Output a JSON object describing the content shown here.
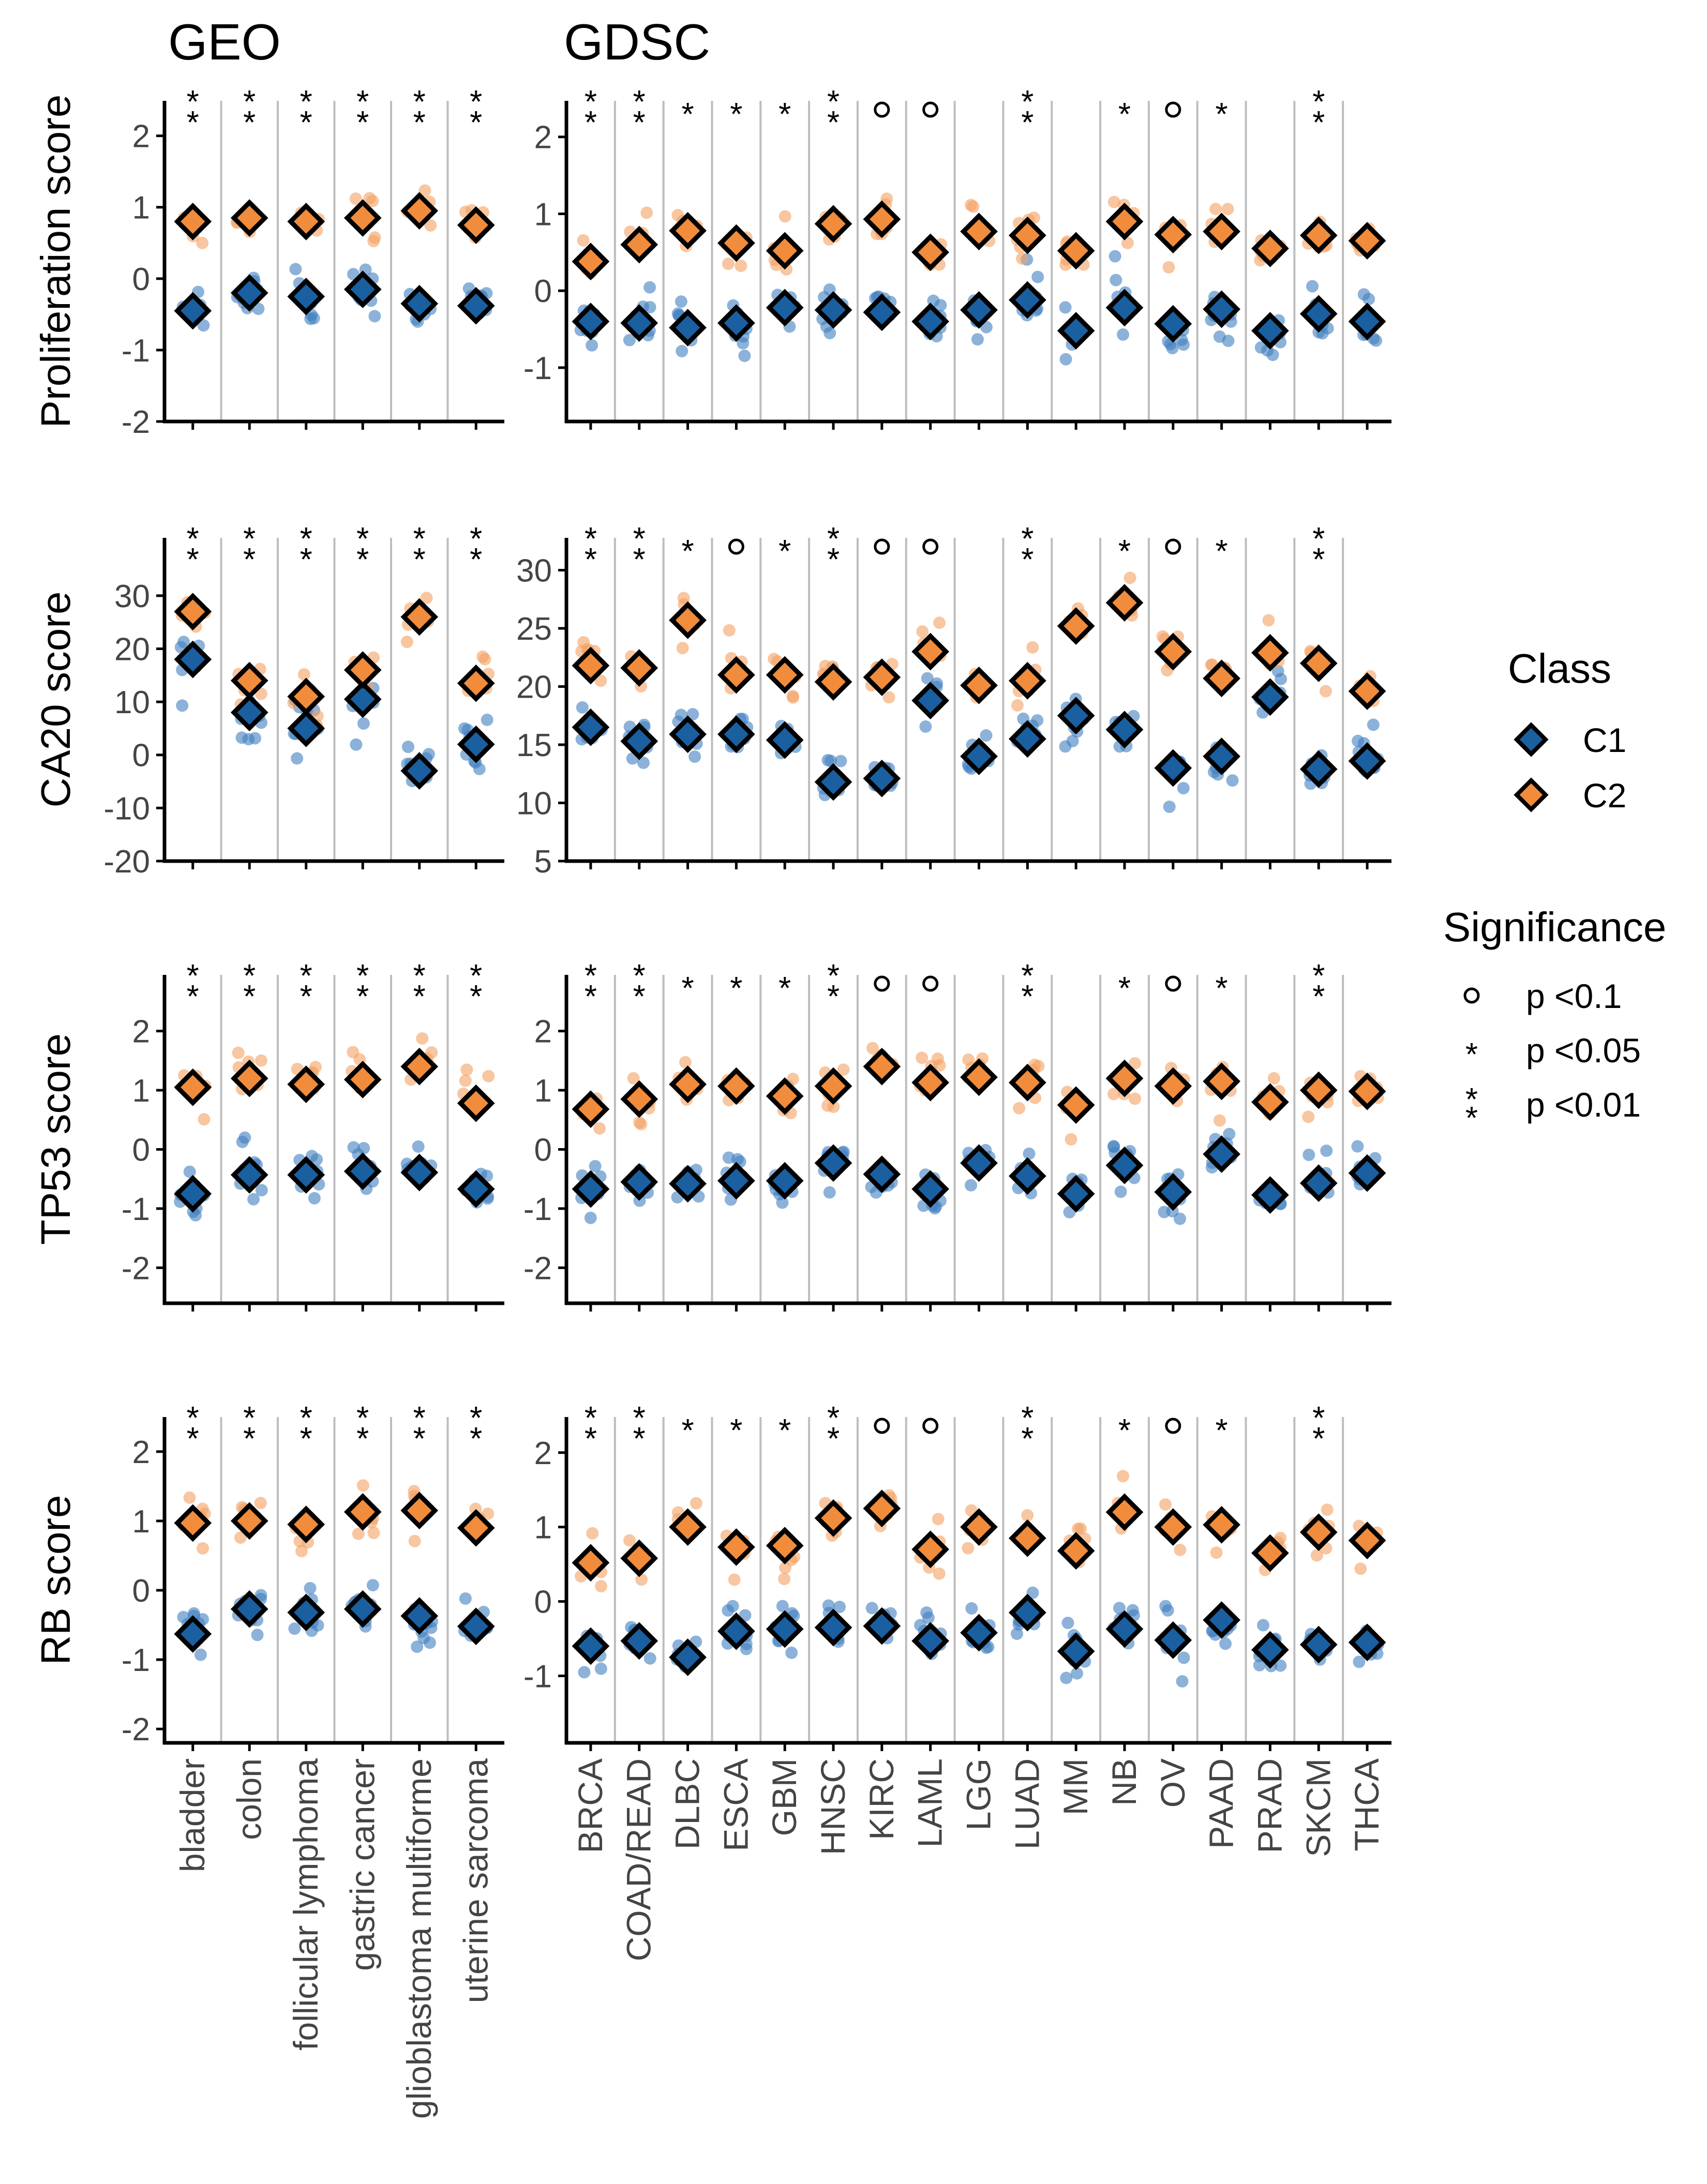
{
  "chart_data": {
    "type": "scatter",
    "group_titles": [
      "GEO",
      "GDSC"
    ],
    "row_labels": [
      "Proliferation score",
      "CA20 score",
      "TP53 score",
      "RB score"
    ],
    "geo_categories": [
      "bladder",
      "colon",
      "follicular lymphoma",
      "gastric cancer",
      "glioblastoma multiforme",
      "uterine sarcoma"
    ],
    "gdsc_categories": [
      "BRCA",
      "COAD/READ",
      "DLBC",
      "ESCA",
      "GBM",
      "HNSC",
      "KIRC",
      "LAML",
      "LGG",
      "LUAD",
      "MM",
      "NB",
      "OV",
      "PAAD",
      "PRAD",
      "SKCM",
      "THCA"
    ],
    "legend": {
      "class_title": "Class",
      "class_entries": [
        {
          "label": "C1",
          "color": "#1a5fa0"
        },
        {
          "label": "C2",
          "color": "#f08c3c"
        }
      ],
      "significance_title": "Significance",
      "significance_entries": [
        {
          "symbol": "o",
          "label": "p <0.1"
        },
        {
          "symbol": "*",
          "label": "p <0.05"
        },
        {
          "symbol": "**",
          "label": "p <0.01"
        }
      ]
    },
    "colors": {
      "c1": "#1a5fa0",
      "c2": "#f08c3c",
      "c1_points": "#3f7fc0",
      "c2_points": "#f4a060",
      "separator": "#bdbdbd"
    },
    "panels": [
      {
        "geo": {
          "ylim": [
            -2,
            2.2
          ],
          "ticks": [
            -2,
            -1,
            0,
            1,
            2
          ],
          "c1": [
            -0.45,
            -0.2,
            -0.25,
            -0.15,
            -0.35,
            -0.38
          ],
          "c2": [
            0.8,
            0.85,
            0.8,
            0.85,
            0.95,
            0.75
          ],
          "sig": [
            "**",
            "**",
            "**",
            "**",
            "**",
            "**"
          ]
        },
        "gdsc": {
          "ylim": [
            -1.7,
            2.2
          ],
          "ticks": [
            -1,
            0,
            1,
            2
          ],
          "c1": [
            -0.4,
            -0.42,
            -0.48,
            -0.42,
            -0.22,
            -0.25,
            -0.28,
            -0.4,
            -0.25,
            -0.12,
            -0.52,
            -0.22,
            -0.43,
            -0.24,
            -0.52,
            -0.3,
            -0.4
          ],
          "c2": [
            0.38,
            0.6,
            0.78,
            0.62,
            0.52,
            0.87,
            0.93,
            0.5,
            0.77,
            0.72,
            0.52,
            0.9,
            0.73,
            0.77,
            0.55,
            0.72,
            0.65
          ],
          "sig": [
            "**",
            "**",
            "*",
            "*",
            "*",
            "**",
            "o",
            "o",
            "",
            "**",
            "",
            "*",
            "o",
            "*",
            "",
            "**",
            ""
          ]
        }
      },
      {
        "geo": {
          "ylim": [
            -20,
            37
          ],
          "ticks": [
            -20,
            -10,
            0,
            10,
            20,
            30
          ],
          "c1": [
            18,
            8,
            5,
            10.5,
            -3,
            2
          ],
          "c2": [
            27,
            14,
            11,
            16,
            26,
            13.5
          ],
          "sig": [
            "**",
            "**",
            "**",
            "**",
            "**",
            "**"
          ]
        },
        "gdsc": {
          "ylim": [
            5,
            31
          ],
          "ticks": [
            5,
            10,
            15,
            20,
            25,
            30
          ],
          "c1": [
            16.5,
            15.3,
            15.9,
            15.9,
            15.4,
            11.8,
            12.1,
            18.8,
            14,
            15.5,
            17.5,
            16.3,
            13,
            14,
            19.1,
            12.9,
            13.6
          ],
          "c2": [
            21.8,
            21.6,
            25.7,
            21,
            21,
            20.4,
            20.8,
            23,
            20.1,
            20.5,
            25.2,
            27.2,
            23,
            20.7,
            22.9,
            22,
            19.6
          ],
          "sig": [
            "**",
            "**",
            "*",
            "o",
            "*",
            "**",
            "o",
            "o",
            "",
            "**",
            "",
            "*",
            "o",
            "*",
            "",
            "**",
            ""
          ]
        }
      },
      {
        "geo": {
          "ylim": [
            -2.6,
            2.6
          ],
          "ticks": [
            -2,
            -1,
            0,
            1,
            2
          ],
          "c1": [
            -0.75,
            -0.43,
            -0.43,
            -0.37,
            -0.39,
            -0.67
          ],
          "c2": [
            1.05,
            1.2,
            1.1,
            1.18,
            1.4,
            0.78
          ],
          "sig": [
            "**",
            "**",
            "**",
            "**",
            "**",
            "**"
          ]
        },
        "gdsc": {
          "ylim": [
            -2.6,
            2.6
          ],
          "ticks": [
            -2,
            -1,
            0,
            1,
            2
          ],
          "c1": [
            -0.67,
            -0.55,
            -0.58,
            -0.53,
            -0.53,
            -0.23,
            -0.42,
            -0.67,
            -0.23,
            -0.45,
            -0.75,
            -0.27,
            -0.72,
            -0.08,
            -0.77,
            -0.57,
            -0.4
          ],
          "c2": [
            0.68,
            0.85,
            1.1,
            1.07,
            0.9,
            1.07,
            1.4,
            1.13,
            1.22,
            1.13,
            0.75,
            1.2,
            1.07,
            1.15,
            0.8,
            1.0,
            0.98
          ],
          "sig": [
            "**",
            "**",
            "*",
            "*",
            "*",
            "**",
            "o",
            "o",
            "",
            "**",
            "",
            "*",
            "o",
            "*",
            "",
            "**",
            ""
          ]
        }
      },
      {
        "geo": {
          "ylim": [
            -2.2,
            2.2
          ],
          "ticks": [
            -2,
            -1,
            0,
            1,
            2
          ],
          "c1": [
            -0.63,
            -0.27,
            -0.32,
            -0.27,
            -0.37,
            -0.52
          ],
          "c2": [
            0.97,
            1.0,
            0.95,
            1.13,
            1.15,
            0.9
          ],
          "sig": [
            "**",
            "**",
            "**",
            "**",
            "**",
            "**"
          ]
        },
        "gdsc": {
          "ylim": [
            -1.9,
            2.2
          ],
          "ticks": [
            -1,
            0,
            1,
            2
          ],
          "c1": [
            -0.6,
            -0.53,
            -0.75,
            -0.4,
            -0.37,
            -0.35,
            -0.33,
            -0.53,
            -0.42,
            -0.15,
            -0.67,
            -0.37,
            -0.52,
            -0.25,
            -0.65,
            -0.58,
            -0.55
          ],
          "c2": [
            0.52,
            0.58,
            1.0,
            0.73,
            0.75,
            1.12,
            1.25,
            0.7,
            1.0,
            0.85,
            0.68,
            1.2,
            1.0,
            1.03,
            0.65,
            0.93,
            0.82
          ],
          "sig": [
            "**",
            "**",
            "*",
            "*",
            "*",
            "**",
            "o",
            "o",
            "",
            "**",
            "",
            "*",
            "o",
            "*",
            "",
            "**",
            ""
          ]
        }
      }
    ]
  }
}
